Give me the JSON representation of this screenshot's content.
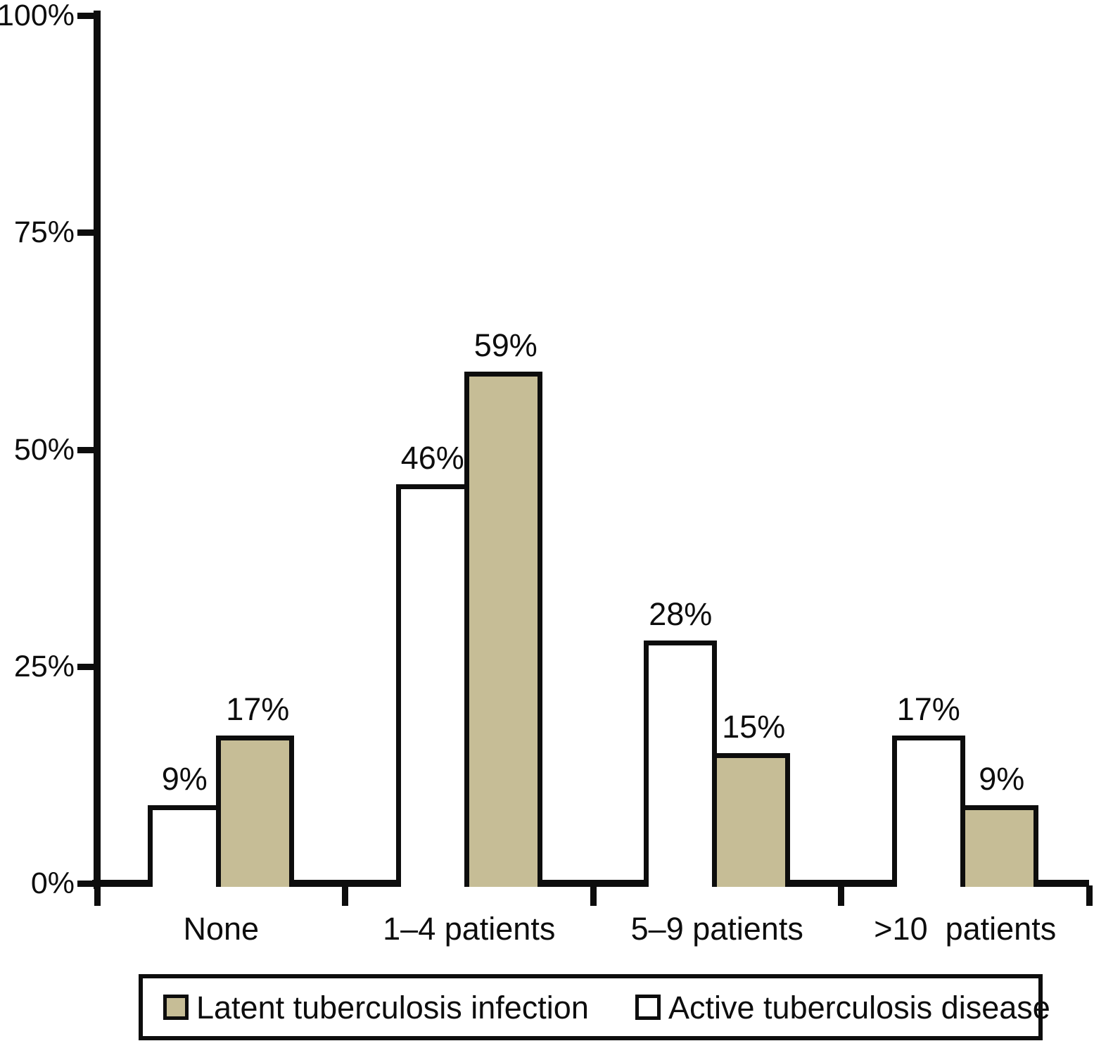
{
  "chart_data": {
    "type": "bar",
    "title": "",
    "categories": [
      "None",
      "1–4 patients",
      "5–9 patients",
      ">10  patients"
    ],
    "series": [
      {
        "name": "Active tuberculosis disease",
        "color": "#ffffff",
        "border_color": "#0d0d0d",
        "values": [
          9,
          46,
          28,
          17
        ],
        "value_labels": [
          "9%",
          "46%",
          "28%",
          "17%"
        ]
      },
      {
        "name": "Latent tuberculosis infection",
        "color": "#c6bd96",
        "border_color": "#0d0d0d",
        "values": [
          17,
          59,
          15,
          9
        ],
        "value_labels": [
          "17%",
          "59%",
          "15%",
          "9%"
        ]
      }
    ],
    "y_axis": {
      "min": 0,
      "max": 100,
      "ticks": [
        {
          "label": "0%",
          "value": 0
        },
        {
          "label": "25%",
          "value": 25
        },
        {
          "label": "50%",
          "value": 50
        },
        {
          "label": "75%",
          "value": 75
        },
        {
          "label": "100%",
          "value": 100
        }
      ]
    },
    "grid": false,
    "legend_position": "bottom"
  },
  "legend": {
    "items": [
      {
        "label": "Latent tuberculosis infection",
        "swatch_color": "#c6bd96"
      },
      {
        "label": "Active tuberculosis disease",
        "swatch_color": "#ffffff"
      }
    ]
  }
}
